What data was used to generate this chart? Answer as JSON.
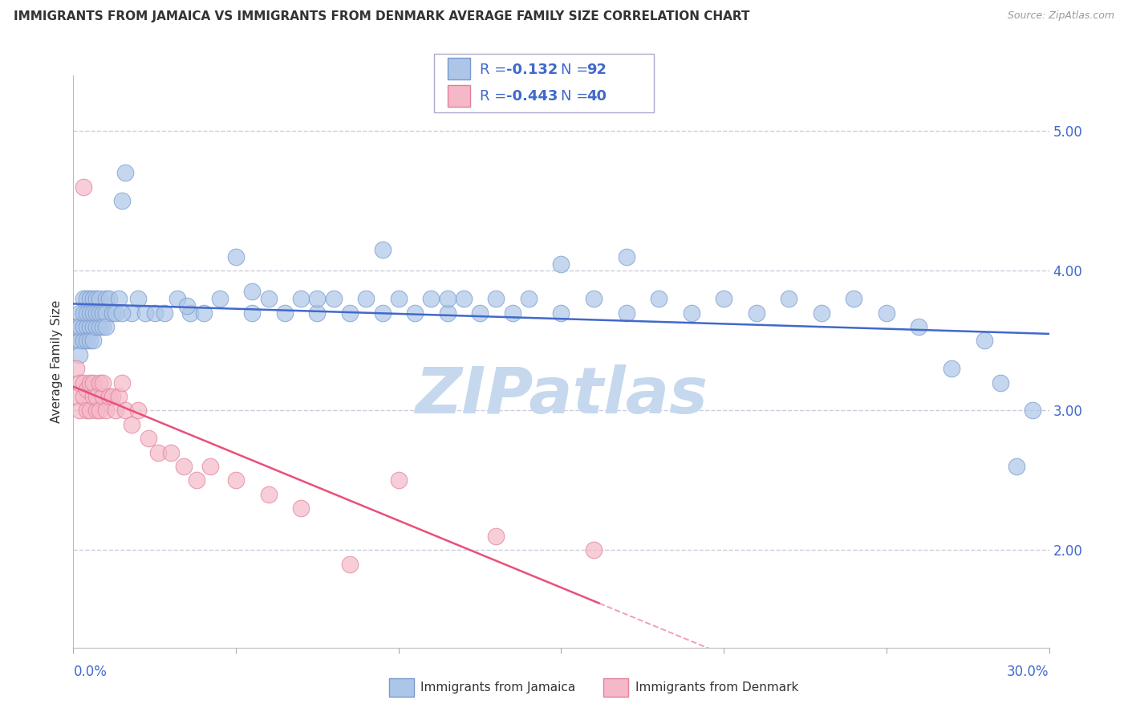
{
  "title": "IMMIGRANTS FROM JAMAICA VS IMMIGRANTS FROM DENMARK AVERAGE FAMILY SIZE CORRELATION CHART",
  "source": "Source: ZipAtlas.com",
  "ylabel": "Average Family Size",
  "xlim": [
    0.0,
    0.3
  ],
  "ylim": [
    1.3,
    5.4
  ],
  "yticks": [
    2.0,
    3.0,
    4.0,
    5.0
  ],
  "background_color": "#ffffff",
  "grid_color": "#ccccdd",
  "jamaica_color": "#adc6e8",
  "jamaica_edge": "#7799cc",
  "denmark_color": "#f5b8c8",
  "denmark_edge": "#e08098",
  "jamaica_line_color": "#4169cc",
  "denmark_line_color": "#e8507a",
  "tick_label_color": "#4169cc",
  "text_color": "#333333",
  "source_color": "#999999",
  "legend_text_color": "#4169cc",
  "watermark_color": "#c5d8ee",
  "jamaica_points_x": [
    0.001,
    0.001,
    0.002,
    0.002,
    0.002,
    0.002,
    0.003,
    0.003,
    0.003,
    0.003,
    0.004,
    0.004,
    0.004,
    0.004,
    0.005,
    0.005,
    0.005,
    0.005,
    0.006,
    0.006,
    0.006,
    0.006,
    0.007,
    0.007,
    0.007,
    0.008,
    0.008,
    0.008,
    0.009,
    0.009,
    0.01,
    0.01,
    0.01,
    0.011,
    0.012,
    0.013,
    0.014,
    0.015,
    0.016,
    0.018,
    0.02,
    0.022,
    0.025,
    0.028,
    0.032,
    0.036,
    0.04,
    0.045,
    0.05,
    0.055,
    0.06,
    0.065,
    0.07,
    0.075,
    0.08,
    0.085,
    0.09,
    0.095,
    0.1,
    0.105,
    0.11,
    0.115,
    0.12,
    0.125,
    0.13,
    0.135,
    0.14,
    0.15,
    0.16,
    0.17,
    0.18,
    0.19,
    0.2,
    0.21,
    0.22,
    0.23,
    0.24,
    0.25,
    0.26,
    0.27,
    0.28,
    0.285,
    0.29,
    0.295,
    0.15,
    0.17,
    0.115,
    0.095,
    0.075,
    0.055,
    0.035,
    0.015
  ],
  "jamaica_points_y": [
    3.5,
    3.6,
    3.7,
    3.5,
    3.6,
    3.4,
    3.8,
    3.5,
    3.6,
    3.7,
    3.6,
    3.8,
    3.5,
    3.7,
    3.6,
    3.8,
    3.5,
    3.7,
    3.6,
    3.8,
    3.5,
    3.7,
    3.8,
    3.6,
    3.7,
    3.6,
    3.8,
    3.7,
    3.7,
    3.6,
    3.8,
    3.7,
    3.6,
    3.8,
    3.7,
    3.7,
    3.8,
    4.5,
    4.7,
    3.7,
    3.8,
    3.7,
    3.7,
    3.7,
    3.8,
    3.7,
    3.7,
    3.8,
    4.1,
    3.7,
    3.8,
    3.7,
    3.8,
    3.7,
    3.8,
    3.7,
    3.8,
    3.7,
    3.8,
    3.7,
    3.8,
    3.7,
    3.8,
    3.7,
    3.8,
    3.7,
    3.8,
    3.7,
    3.8,
    3.7,
    3.8,
    3.7,
    3.8,
    3.7,
    3.8,
    3.7,
    3.8,
    3.7,
    3.6,
    3.3,
    3.5,
    3.2,
    2.6,
    3.0,
    4.05,
    4.1,
    3.8,
    4.15,
    3.8,
    3.85,
    3.75,
    3.7
  ],
  "denmark_points_x": [
    0.001,
    0.001,
    0.002,
    0.002,
    0.003,
    0.003,
    0.004,
    0.004,
    0.005,
    0.005,
    0.006,
    0.006,
    0.007,
    0.007,
    0.008,
    0.008,
    0.009,
    0.009,
    0.01,
    0.011,
    0.012,
    0.013,
    0.014,
    0.015,
    0.016,
    0.018,
    0.02,
    0.023,
    0.026,
    0.03,
    0.034,
    0.038,
    0.042,
    0.05,
    0.06,
    0.07,
    0.085,
    0.1,
    0.13,
    0.16
  ],
  "denmark_points_y": [
    3.3,
    3.1,
    3.2,
    3.0,
    3.1,
    3.2,
    3.0,
    3.15,
    3.2,
    3.0,
    3.1,
    3.2,
    3.0,
    3.1,
    3.2,
    3.0,
    3.1,
    3.2,
    3.0,
    3.1,
    3.1,
    3.0,
    3.1,
    3.2,
    3.0,
    2.9,
    3.0,
    2.8,
    2.7,
    2.7,
    2.6,
    2.5,
    2.6,
    2.5,
    2.4,
    2.3,
    1.9,
    2.5,
    2.1,
    2.0
  ],
  "denmark_outlier_x": [
    0.003
  ],
  "denmark_outlier_y": [
    4.6
  ]
}
